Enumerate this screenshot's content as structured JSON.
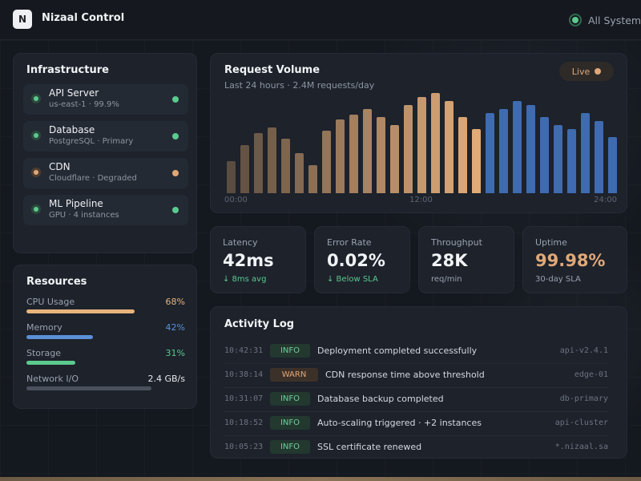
{
  "app": {
    "logo_letter": "N",
    "title": "Nizaal Control",
    "status": "All Systems"
  },
  "infrastructure": {
    "title": "Infrastructure",
    "services": [
      {
        "name": "API Server",
        "detail": "us-east-1 · 99.9%",
        "state": "ok"
      },
      {
        "name": "Database",
        "detail": "PostgreSQL · Primary",
        "state": "ok"
      },
      {
        "name": "CDN",
        "detail": "Cloudflare · Degraded",
        "state": "warn"
      },
      {
        "name": "ML Pipeline",
        "detail": "GPU · 4 instances",
        "state": "ok"
      }
    ]
  },
  "resources": {
    "title": "Resources",
    "items": [
      {
        "label": "CPU Usage",
        "value": "68%",
        "fraction": 0.68,
        "color": "#e8b47c"
      },
      {
        "label": "Memory",
        "value": "42%",
        "fraction": 0.42,
        "color": "#5b8fd6"
      },
      {
        "label": "Storage",
        "value": "31%",
        "fraction": 0.31,
        "color": "#5cc98f"
      },
      {
        "label": "Network I/O",
        "value": "2.4 GB/s",
        "fraction": 0.79,
        "color": "#4b515c"
      }
    ]
  },
  "request_volume": {
    "title": "Request Volume",
    "subtitle": "Last 24 hours · 2.4M requests/day",
    "live_label": "Live",
    "x_ticks": [
      "00:00",
      "12:00",
      "24:00"
    ]
  },
  "chart_data": {
    "type": "bar",
    "title": "Request Volume",
    "subtitle": "Last 24 hours · 2.4M requests/day",
    "x_ticks": [
      "00:00",
      "12:00",
      "24:00"
    ],
    "values": [
      40,
      60,
      75,
      82,
      68,
      50,
      35,
      78,
      92,
      98,
      105,
      95,
      85,
      110,
      120,
      125,
      115,
      95,
      80,
      100,
      105,
      115,
      110,
      95,
      85,
      80,
      100,
      90,
      70
    ],
    "ylim": [
      0,
      130
    ],
    "colors": {
      "warm_start": "#5a4c40",
      "warm_end": "#e0ab78",
      "cool": "#3f6bb0"
    },
    "warm_count": 19
  },
  "stats": [
    {
      "label": "Latency",
      "value": "42ms",
      "sub": "↓ 8ms avg",
      "sub_tone": "good",
      "accent": false
    },
    {
      "label": "Error Rate",
      "value": "0.02%",
      "sub": "↓ Below SLA",
      "sub_tone": "good",
      "accent": false
    },
    {
      "label": "Throughput",
      "value": "28K",
      "sub": "req/min",
      "sub_tone": "muted",
      "accent": false
    },
    {
      "label": "Uptime",
      "value": "99.98%",
      "sub": "30-day SLA",
      "sub_tone": "muted",
      "accent": true
    }
  ],
  "activity_log": {
    "title": "Activity Log",
    "entries": [
      {
        "time": "10:42:31",
        "level": "INFO",
        "message": "Deployment completed successfully",
        "source": "api-v2.4.1"
      },
      {
        "time": "10:38:14",
        "level": "WARN",
        "message": "CDN response time above threshold",
        "source": "edge-01"
      },
      {
        "time": "10:31:07",
        "level": "INFO",
        "message": "Database backup completed",
        "source": "db-primary"
      },
      {
        "time": "10:18:52",
        "level": "INFO",
        "message": "Auto-scaling triggered · +2 instances",
        "source": "api-cluster"
      },
      {
        "time": "10:05:23",
        "level": "INFO",
        "message": "SSL certificate renewed",
        "source": "*.nizaal.sa"
      }
    ]
  }
}
